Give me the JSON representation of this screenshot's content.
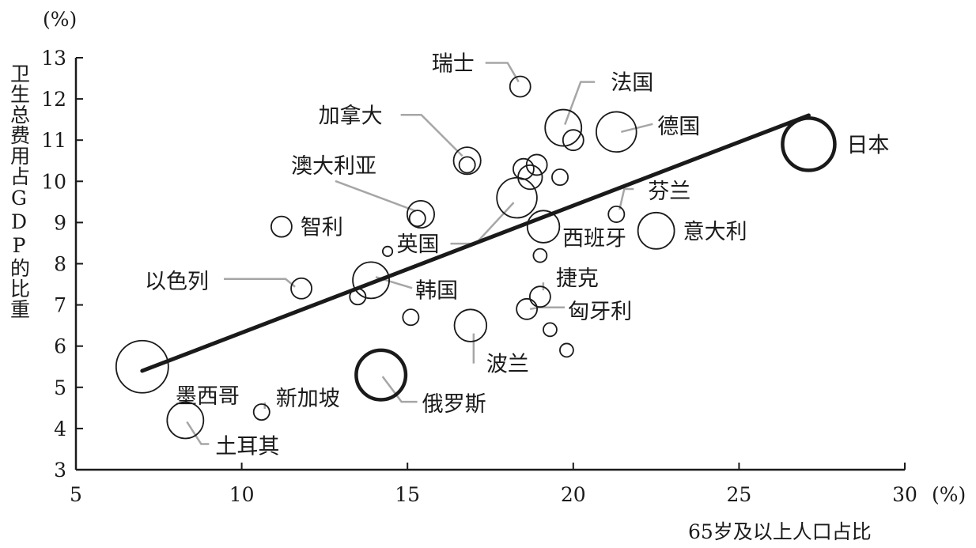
{
  "chart_data": {
    "type": "scatter",
    "title": "",
    "xlabel": "65岁及以上人口占比",
    "ylabel": "卫生总费用占GDP的比重",
    "x_unit": "(%)",
    "y_unit": "(%)",
    "xlim": [
      5,
      30
    ],
    "ylim": [
      3,
      13
    ],
    "xticks": [
      5,
      10,
      15,
      20,
      25,
      30
    ],
    "yticks": [
      3,
      4,
      5,
      6,
      7,
      8,
      9,
      10,
      11,
      12,
      13
    ],
    "grid": false,
    "bubble_size_meaning": "relative (not labeled)",
    "trendline": {
      "x": [
        7.0,
        27.1
      ],
      "y": [
        5.4,
        11.6
      ]
    },
    "points": [
      {
        "name": "瑞士",
        "x": 18.4,
        "y": 12.3,
        "size": 1
      },
      {
        "name": "法国",
        "x": 19.7,
        "y": 11.3,
        "size": 4
      },
      {
        "name": "德国",
        "x": 21.3,
        "y": 11.2,
        "size": 5
      },
      {
        "name": "日本",
        "x": 27.1,
        "y": 10.9,
        "size": 9
      },
      {
        "name": "加拿大",
        "x": 16.8,
        "y": 10.5,
        "size": 2
      },
      {
        "name": "",
        "x": 16.8,
        "y": 10.4,
        "size": 0.5
      },
      {
        "name": "",
        "x": 20.0,
        "y": 11.0,
        "size": 1
      },
      {
        "name": "",
        "x": 18.5,
        "y": 10.3,
        "size": 1
      },
      {
        "name": "",
        "x": 18.9,
        "y": 10.4,
        "size": 1
      },
      {
        "name": "",
        "x": 18.7,
        "y": 10.1,
        "size": 1.5
      },
      {
        "name": "",
        "x": 19.6,
        "y": 10.1,
        "size": 0.5
      },
      {
        "name": "澳大利亚",
        "x": 15.4,
        "y": 9.2,
        "size": 2
      },
      {
        "name": "",
        "x": 15.3,
        "y": 9.1,
        "size": 0.5
      },
      {
        "name": "英国",
        "x": 18.3,
        "y": 9.6,
        "size": 5
      },
      {
        "name": "芬兰",
        "x": 21.3,
        "y": 9.2,
        "size": 0.5
      },
      {
        "name": "智利",
        "x": 11.2,
        "y": 8.9,
        "size": 1
      },
      {
        "name": "西班牙",
        "x": 19.1,
        "y": 8.9,
        "size": 3
      },
      {
        "name": "意大利",
        "x": 22.5,
        "y": 8.8,
        "size": 4
      },
      {
        "name": "",
        "x": 14.4,
        "y": 8.3,
        "size": 0.1
      },
      {
        "name": "",
        "x": 19.0,
        "y": 8.2,
        "size": 0.3
      },
      {
        "name": "以色列",
        "x": 11.8,
        "y": 7.4,
        "size": 1
      },
      {
        "name": "韩国",
        "x": 13.9,
        "y": 7.6,
        "size": 4
      },
      {
        "name": "",
        "x": 13.5,
        "y": 7.2,
        "size": 0.5
      },
      {
        "name": "捷克",
        "x": 19.0,
        "y": 7.2,
        "size": 1
      },
      {
        "name": "匈牙利",
        "x": 18.6,
        "y": 6.9,
        "size": 1
      },
      {
        "name": "",
        "x": 15.1,
        "y": 6.7,
        "size": 0.5
      },
      {
        "name": "波兰",
        "x": 16.9,
        "y": 6.5,
        "size": 3
      },
      {
        "name": "",
        "x": 19.3,
        "y": 6.4,
        "size": 0.3
      },
      {
        "name": "",
        "x": 19.8,
        "y": 5.9,
        "size": 0.3
      },
      {
        "name": "墨西哥",
        "x": 7.0,
        "y": 5.5,
        "size": 9
      },
      {
        "name": "俄罗斯",
        "x": 14.2,
        "y": 5.3,
        "size": 8
      },
      {
        "name": "新加坡",
        "x": 10.6,
        "y": 4.4,
        "size": 0.5
      },
      {
        "name": "土耳其",
        "x": 8.3,
        "y": 4.2,
        "size": 4
      }
    ]
  }
}
